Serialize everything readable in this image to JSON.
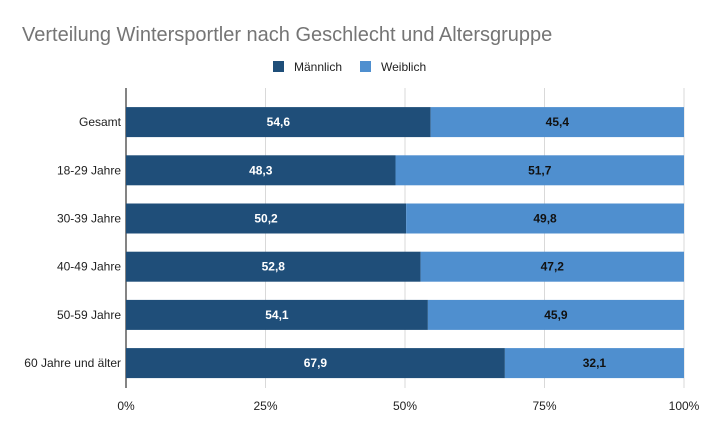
{
  "chart_data": {
    "type": "bar",
    "orientation": "horizontal",
    "stacked": true,
    "percent_scale": true,
    "title": "Verteilung Wintersportler nach Geschlecht und Altersgruppe",
    "categories": [
      "Gesamt",
      "18-29 Jahre",
      "30-39 Jahre",
      "40-49 Jahre",
      "50-59 Jahre",
      "60 Jahre und älter"
    ],
    "series": [
      {
        "name": "Männlich",
        "values": [
          54.6,
          48.3,
          50.2,
          52.8,
          54.1,
          67.9
        ],
        "labels": [
          "54,6",
          "48,3",
          "50,2",
          "52,8",
          "54,1",
          "67,9"
        ],
        "color": "#1f4e79",
        "label_color": "#ffffff"
      },
      {
        "name": "Weiblich",
        "values": [
          45.4,
          51.7,
          49.8,
          47.2,
          45.9,
          32.1
        ],
        "labels": [
          "45,4",
          "51,7",
          "49,8",
          "47,2",
          "45,9",
          "32,1"
        ],
        "color": "#4f8fcf",
        "label_color": "#111111"
      }
    ],
    "xlim": [
      0,
      100
    ],
    "x_ticks": [
      0,
      25,
      50,
      75,
      100
    ],
    "x_tick_labels": [
      "0%",
      "25%",
      "50%",
      "75%",
      "100%"
    ],
    "legend_position": "top-center",
    "grid": true
  }
}
